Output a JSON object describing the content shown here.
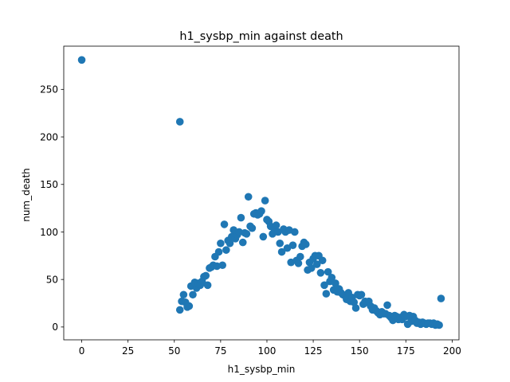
{
  "chart_data": {
    "type": "scatter",
    "title": "h1_sysbp_min against death",
    "xlabel": "h1_sysbp_min",
    "ylabel": "num_death",
    "xlim": [
      -9.7,
      203.7
    ],
    "ylim": [
      -13.5,
      295.5
    ],
    "xticks": [
      0,
      25,
      50,
      75,
      100,
      125,
      150,
      175,
      200
    ],
    "yticks": [
      0,
      50,
      100,
      150,
      200,
      250
    ],
    "grid": false,
    "legend": "none",
    "marker_color": "#1f77b4",
    "points": [
      [
        0,
        281
      ],
      [
        53,
        216
      ],
      [
        53,
        18
      ],
      [
        54,
        27
      ],
      [
        55,
        34
      ],
      [
        56,
        26
      ],
      [
        57,
        21
      ],
      [
        58,
        22
      ],
      [
        59,
        43
      ],
      [
        60,
        34
      ],
      [
        61,
        47
      ],
      [
        62,
        41
      ],
      [
        63,
        46
      ],
      [
        64,
        44
      ],
      [
        65,
        48
      ],
      [
        66,
        53
      ],
      [
        67,
        54
      ],
      [
        68,
        44
      ],
      [
        69,
        62
      ],
      [
        70,
        63
      ],
      [
        71,
        65
      ],
      [
        72,
        74
      ],
      [
        73,
        64
      ],
      [
        74,
        79
      ],
      [
        75,
        88
      ],
      [
        76,
        65
      ],
      [
        77,
        108
      ],
      [
        78,
        81
      ],
      [
        79,
        91
      ],
      [
        80,
        88
      ],
      [
        81,
        95
      ],
      [
        82,
        102
      ],
      [
        83,
        93
      ],
      [
        84,
        97
      ],
      [
        85,
        100
      ],
      [
        86,
        115
      ],
      [
        87,
        89
      ],
      [
        88,
        99
      ],
      [
        89,
        98
      ],
      [
        90,
        137
      ],
      [
        91,
        106
      ],
      [
        92,
        104
      ],
      [
        93,
        119
      ],
      [
        94,
        120
      ],
      [
        95,
        118
      ],
      [
        96,
        119
      ],
      [
        97,
        122
      ],
      [
        98,
        95
      ],
      [
        99,
        133
      ],
      [
        100,
        113
      ],
      [
        101,
        111
      ],
      [
        102,
        106
      ],
      [
        103,
        98
      ],
      [
        104,
        103
      ],
      [
        105,
        107
      ],
      [
        106,
        100
      ],
      [
        107,
        88
      ],
      [
        108,
        79
      ],
      [
        109,
        103
      ],
      [
        110,
        100
      ],
      [
        111,
        83
      ],
      [
        112,
        102
      ],
      [
        113,
        68
      ],
      [
        114,
        86
      ],
      [
        115,
        100
      ],
      [
        116,
        70
      ],
      [
        117,
        67
      ],
      [
        118,
        74
      ],
      [
        119,
        85
      ],
      [
        120,
        89
      ],
      [
        121,
        87
      ],
      [
        122,
        60
      ],
      [
        123,
        68
      ],
      [
        124,
        62
      ],
      [
        125,
        72
      ],
      [
        126,
        75
      ],
      [
        127,
        66
      ],
      [
        128,
        75
      ],
      [
        129,
        57
      ],
      [
        130,
        70
      ],
      [
        131,
        44
      ],
      [
        132,
        35
      ],
      [
        133,
        58
      ],
      [
        134,
        48
      ],
      [
        135,
        52
      ],
      [
        136,
        39
      ],
      [
        137,
        46
      ],
      [
        138,
        37
      ],
      [
        139,
        40
      ],
      [
        140,
        36
      ],
      [
        141,
        34
      ],
      [
        142,
        33
      ],
      [
        143,
        29
      ],
      [
        144,
        36
      ],
      [
        145,
        27
      ],
      [
        146,
        31
      ],
      [
        147,
        26
      ],
      [
        148,
        20
      ],
      [
        149,
        34
      ],
      [
        150,
        33
      ],
      [
        151,
        34
      ],
      [
        152,
        24
      ],
      [
        153,
        27
      ],
      [
        154,
        26
      ],
      [
        155,
        27
      ],
      [
        156,
        22
      ],
      [
        157,
        18
      ],
      [
        158,
        20
      ],
      [
        159,
        17
      ],
      [
        160,
        15
      ],
      [
        161,
        13
      ],
      [
        162,
        16
      ],
      [
        163,
        14
      ],
      [
        164,
        14
      ],
      [
        165,
        23
      ],
      [
        166,
        12
      ],
      [
        167,
        10
      ],
      [
        168,
        7
      ],
      [
        169,
        12
      ],
      [
        170,
        11
      ],
      [
        171,
        8
      ],
      [
        172,
        10
      ],
      [
        173,
        8
      ],
      [
        174,
        13
      ],
      [
        175,
        11
      ],
      [
        176,
        3
      ],
      [
        177,
        12
      ],
      [
        178,
        6
      ],
      [
        179,
        11
      ],
      [
        180,
        7
      ],
      [
        181,
        4
      ],
      [
        182,
        5
      ],
      [
        183,
        3
      ],
      [
        184,
        5
      ],
      [
        185,
        4
      ],
      [
        186,
        3
      ],
      [
        187,
        4
      ],
      [
        188,
        4
      ],
      [
        189,
        3
      ],
      [
        190,
        4
      ],
      [
        191,
        2
      ],
      [
        192,
        3
      ],
      [
        193,
        2
      ],
      [
        194,
        30
      ]
    ]
  }
}
